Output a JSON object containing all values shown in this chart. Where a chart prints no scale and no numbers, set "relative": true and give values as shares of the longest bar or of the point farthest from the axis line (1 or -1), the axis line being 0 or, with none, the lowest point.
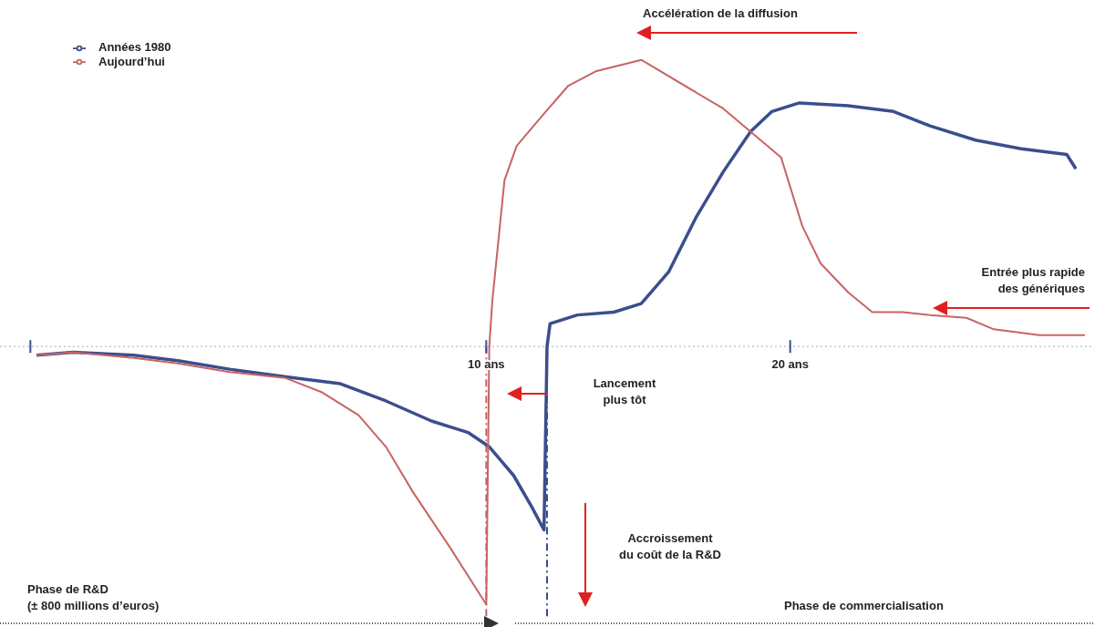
{
  "chart_data": {
    "type": "line",
    "relative": true,
    "legend": "top left",
    "marker": "none",
    "line_style": "solid",
    "xlim": [
      -6,
      30
    ],
    "xticks": [
      {
        "value": -5,
        "label": null
      },
      {
        "value": 10,
        "label": "10 ans"
      },
      {
        "value": 20,
        "label": "20 ans"
      }
    ],
    "series": [
      {
        "name": "Années 1980",
        "color": "#3b4e8c",
        "x": [
          -4.8,
          -3.6,
          -1.6,
          -0.1,
          1.6,
          3.7,
          5.2,
          6.7,
          8.2,
          9.4,
          10.1,
          10.9,
          11.5,
          11.9,
          12.0,
          12.1,
          13.0,
          14.2,
          15.1,
          16.0,
          16.9,
          17.8,
          18.7,
          19.4,
          20.3,
          21.9,
          23.4,
          24.6,
          26.1,
          27.6,
          29.1,
          29.4
        ],
        "values": [
          -0.03,
          -0.02,
          -0.03,
          -0.05,
          -0.08,
          -0.11,
          -0.13,
          -0.19,
          -0.26,
          -0.3,
          -0.35,
          -0.45,
          -0.56,
          -0.64,
          0,
          0.08,
          0.11,
          0.12,
          0.15,
          0.26,
          0.45,
          0.61,
          0.75,
          0.82,
          0.85,
          0.84,
          0.82,
          0.77,
          0.72,
          0.69,
          0.67,
          0.62
        ]
      },
      {
        "name": "Aujourd’hui",
        "color": "#c86464",
        "x": [
          -4.8,
          -3.6,
          -1.6,
          -0.1,
          1.6,
          3.4,
          4.6,
          5.8,
          6.7,
          7.6,
          8.8,
          10.0,
          10.1,
          10.2,
          10.6,
          11.0,
          11.8,
          12.7,
          13.6,
          15.1,
          17.8,
          19.7,
          20.4,
          21.0,
          21.9,
          22.7,
          23.7,
          24.6,
          25.8,
          26.7,
          28.2,
          29.7
        ],
        "values": [
          -0.03,
          -0.02,
          -0.04,
          -0.06,
          -0.09,
          -0.11,
          -0.16,
          -0.24,
          -0.35,
          -0.51,
          -0.7,
          -0.9,
          0,
          0.16,
          0.58,
          0.7,
          0.8,
          0.91,
          0.96,
          1,
          0.83,
          0.66,
          0.42,
          0.29,
          0.19,
          0.12,
          0.12,
          0.11,
          0.1,
          0.06,
          0.04,
          0.04
        ]
      }
    ],
    "ref_lines": [
      {
        "axis": "y",
        "value": 0,
        "color": "#c8c8c8",
        "line_style": "dotted"
      },
      {
        "axis": "x",
        "value": 10,
        "color": "#c86464",
        "line_style": "dashed"
      },
      {
        "axis": "x",
        "value": 12,
        "color": "#3b4e8c",
        "line_style": "dashed"
      }
    ],
    "annotations": [
      "Accélération de la diffusion",
      "Entrée plus rapide\ndes génériques",
      "Lancement\nplus tôt",
      "Accroissement\ndu coût de la R&D",
      "Phase de R&D\n(± 800 millions d’euros)",
      "Phase de commercialisation"
    ]
  }
}
